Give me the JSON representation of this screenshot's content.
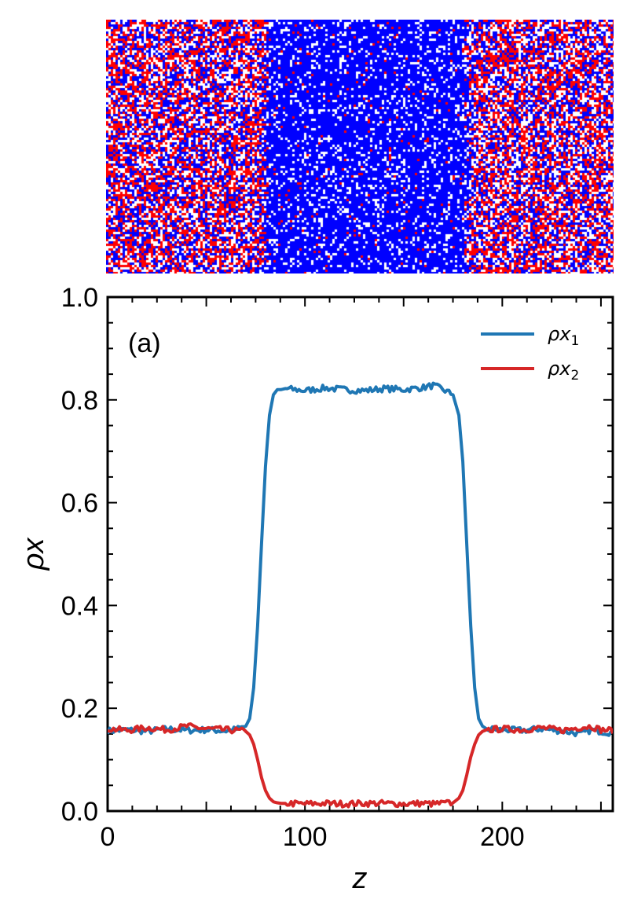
{
  "snapshot": {
    "colors": {
      "species1": "#0000ff",
      "species2": "#ff0000",
      "background": "#ffffff"
    },
    "dense_region_z": [
      80,
      182
    ],
    "dense_species1_density": 0.82,
    "dilute_species1_density": 0.16,
    "dilute_species2_density": 0.16,
    "dense_species2_density": 0.015
  },
  "chart_data": {
    "type": "line",
    "panel_label": "(a)",
    "xlabel": "z",
    "ylabel": "ρx",
    "xlim": [
      0,
      256
    ],
    "ylim": [
      0,
      1.0
    ],
    "xticks": [
      0,
      100,
      200
    ],
    "xtick_labels": [
      "0",
      "100",
      "200"
    ],
    "yticks": [
      0.0,
      0.2,
      0.4,
      0.6,
      0.8,
      1.0
    ],
    "ytick_labels": [
      "0.0",
      "0.2",
      "0.4",
      "0.6",
      "0.8",
      "1.0"
    ],
    "legend_position": "top-right",
    "series": [
      {
        "name": "ρx",
        "subscript": "1",
        "color": "#1f77b4",
        "x": [
          0,
          10,
          20,
          30,
          40,
          50,
          60,
          65,
          70,
          72,
          74,
          76,
          78,
          80,
          82,
          84,
          86,
          88,
          90,
          100,
          110,
          120,
          130,
          140,
          150,
          160,
          165,
          170,
          175,
          178,
          180,
          182,
          184,
          186,
          188,
          190,
          192,
          200,
          210,
          220,
          230,
          240,
          245,
          250,
          256
        ],
        "values": [
          0.156,
          0.158,
          0.155,
          0.16,
          0.157,
          0.158,
          0.156,
          0.159,
          0.165,
          0.18,
          0.24,
          0.36,
          0.52,
          0.67,
          0.77,
          0.81,
          0.82,
          0.82,
          0.822,
          0.818,
          0.823,
          0.82,
          0.818,
          0.822,
          0.82,
          0.824,
          0.828,
          0.82,
          0.81,
          0.77,
          0.68,
          0.52,
          0.36,
          0.24,
          0.18,
          0.165,
          0.16,
          0.158,
          0.157,
          0.16,
          0.156,
          0.15,
          0.158,
          0.155,
          0.152
        ]
      },
      {
        "name": "ρx",
        "subscript": "2",
        "color": "#d62728",
        "x": [
          0,
          10,
          20,
          30,
          40,
          50,
          60,
          65,
          70,
          72,
          74,
          76,
          78,
          80,
          82,
          84,
          86,
          88,
          90,
          100,
          110,
          120,
          130,
          140,
          150,
          160,
          165,
          170,
          175,
          178,
          180,
          182,
          184,
          186,
          188,
          190,
          192,
          200,
          210,
          220,
          230,
          240,
          245,
          250,
          256
        ],
        "values": [
          0.16,
          0.157,
          0.162,
          0.158,
          0.165,
          0.16,
          0.158,
          0.157,
          0.155,
          0.148,
          0.13,
          0.1,
          0.065,
          0.04,
          0.025,
          0.018,
          0.016,
          0.015,
          0.015,
          0.014,
          0.015,
          0.014,
          0.015,
          0.015,
          0.014,
          0.015,
          0.014,
          0.015,
          0.016,
          0.025,
          0.04,
          0.07,
          0.105,
          0.13,
          0.148,
          0.155,
          0.158,
          0.16,
          0.158,
          0.162,
          0.157,
          0.163,
          0.165,
          0.158,
          0.157
        ]
      }
    ]
  }
}
